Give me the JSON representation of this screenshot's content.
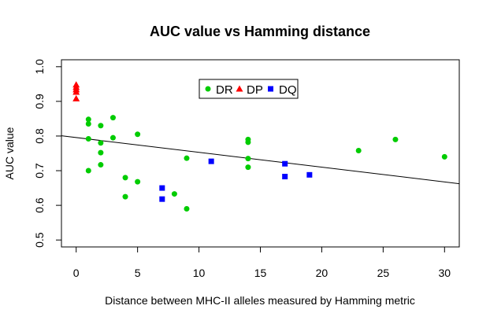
{
  "chart_data": {
    "type": "scatter",
    "title": "AUC value vs Hamming distance",
    "xlabel": "Distance between MHC-II alleles measured by Hamming metric",
    "ylabel": "AUC value",
    "xlim": [
      -1.2,
      31.2
    ],
    "ylim": [
      0.48,
      1.02
    ],
    "xticks": [
      0,
      5,
      10,
      15,
      20,
      25,
      30
    ],
    "yticks": [
      0.5,
      0.6,
      0.7,
      0.8,
      0.9,
      1.0
    ],
    "xtick_labels": [
      "0",
      "5",
      "10",
      "15",
      "20",
      "25",
      "30"
    ],
    "ytick_labels": [
      "0.5",
      "0.6",
      "0.7",
      "0.8",
      "0.9",
      "1.0"
    ],
    "legend_position": "top-center",
    "series": [
      {
        "name": "DR",
        "color": "#00cc00",
        "marker": "circle",
        "points": [
          [
            1,
            0.848
          ],
          [
            1,
            0.835
          ],
          [
            1,
            0.792
          ],
          [
            1,
            0.7
          ],
          [
            2,
            0.83
          ],
          [
            2,
            0.78
          ],
          [
            2,
            0.752
          ],
          [
            2,
            0.717
          ],
          [
            3,
            0.853
          ],
          [
            3,
            0.795
          ],
          [
            4,
            0.68
          ],
          [
            4,
            0.625
          ],
          [
            5,
            0.805
          ],
          [
            5,
            0.668
          ],
          [
            8,
            0.633
          ],
          [
            9,
            0.736
          ],
          [
            9,
            0.59
          ],
          [
            14,
            0.79
          ],
          [
            14,
            0.782
          ],
          [
            14,
            0.735
          ],
          [
            14,
            0.71
          ],
          [
            23,
            0.758
          ],
          [
            26,
            0.79
          ],
          [
            30,
            0.74
          ]
        ]
      },
      {
        "name": "DP",
        "color": "#ff0000",
        "marker": "triangle",
        "points": [
          [
            0,
            0.948
          ],
          [
            0,
            0.941
          ],
          [
            0,
            0.934
          ],
          [
            0,
            0.927
          ],
          [
            0,
            0.908
          ]
        ]
      },
      {
        "name": "DQ",
        "color": "#0000ff",
        "marker": "square",
        "points": [
          [
            7,
            0.65
          ],
          [
            7,
            0.618
          ],
          [
            11,
            0.727
          ],
          [
            17,
            0.72
          ],
          [
            17,
            0.683
          ],
          [
            19,
            0.688
          ]
        ]
      }
    ],
    "regression_line": {
      "color": "#000000",
      "x": [
        -1.2,
        31.2
      ],
      "y": [
        0.8007,
        0.6624
      ]
    }
  }
}
